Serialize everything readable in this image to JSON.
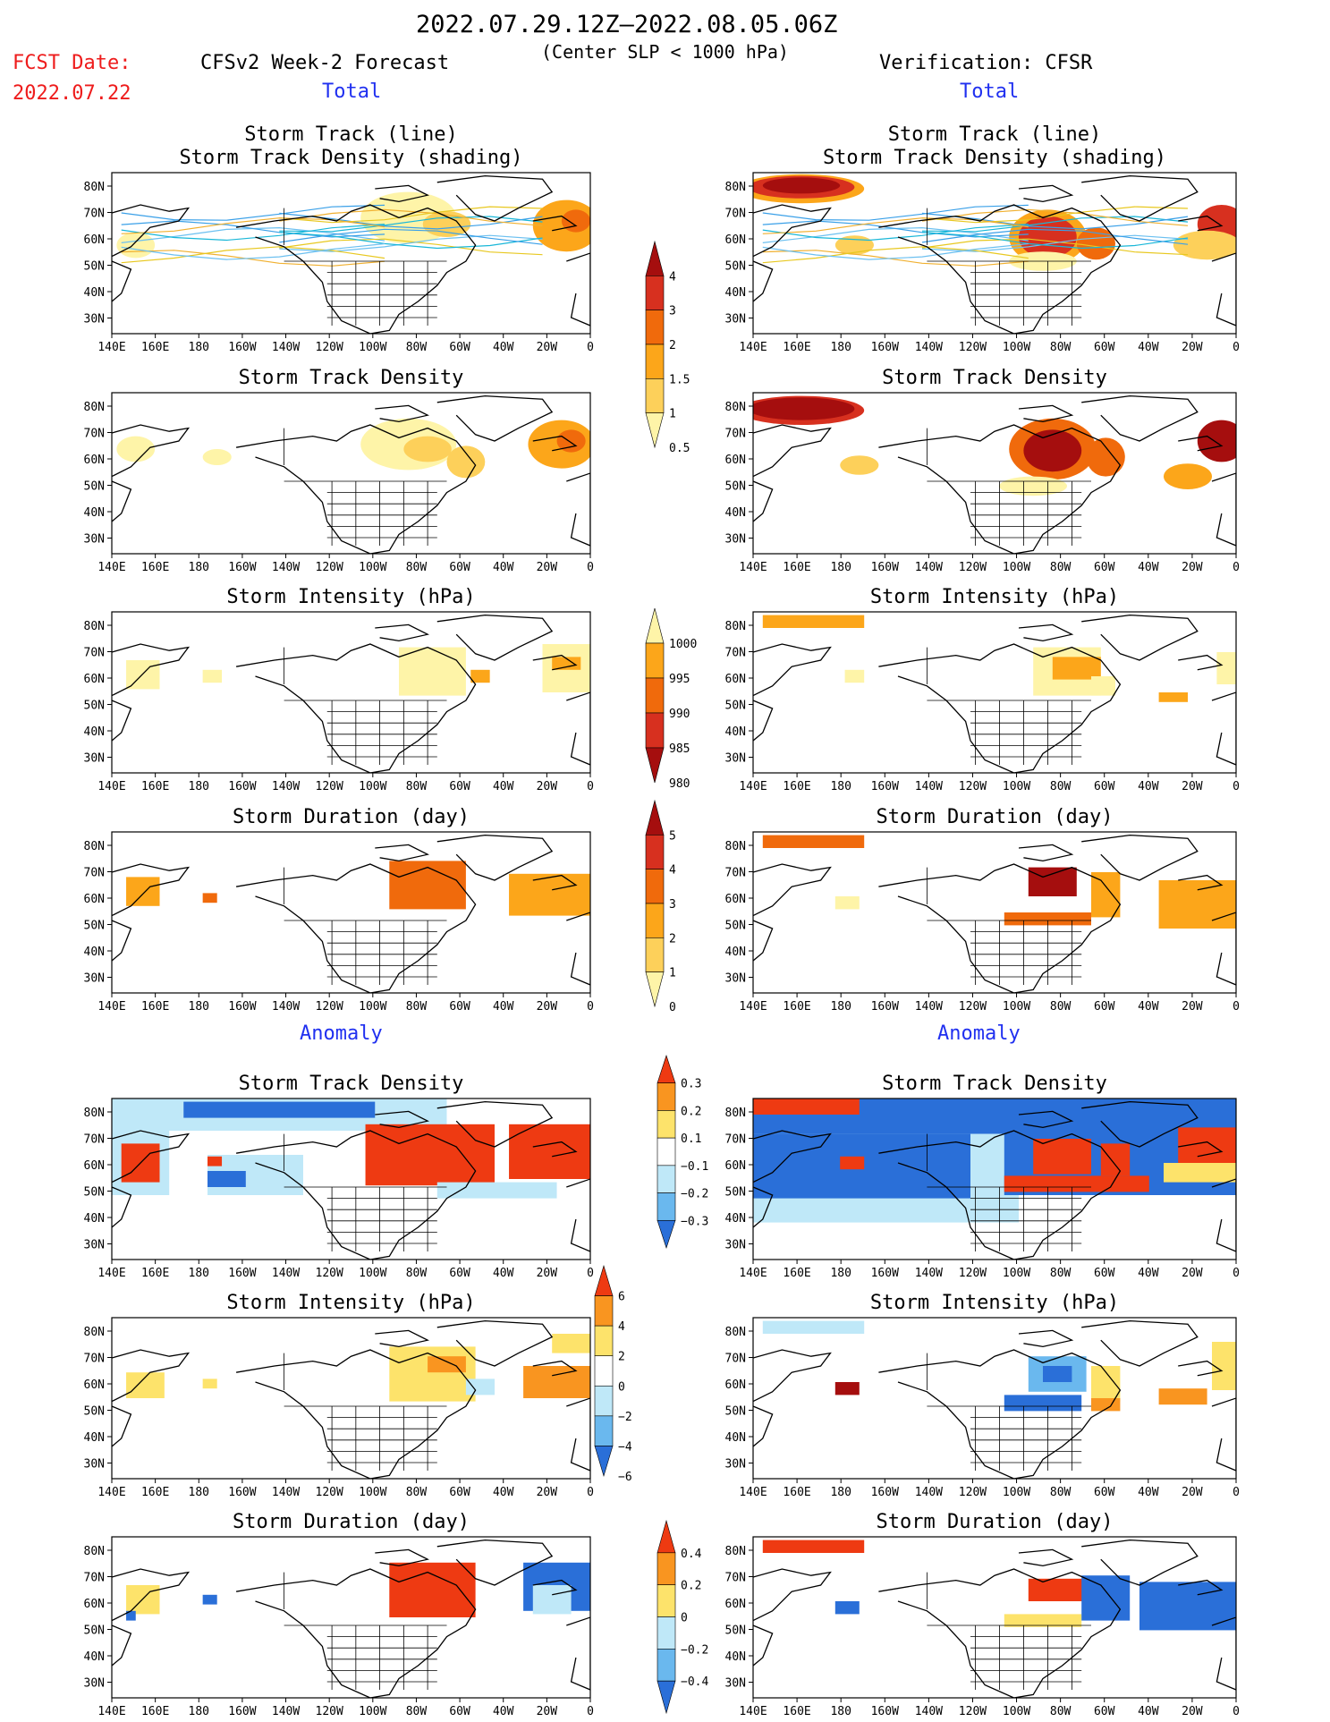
{
  "header": {
    "date_range": "2022.07.29.12Z–2022.08.05.06Z",
    "threshold": "(Center SLP < 1000 hPa)",
    "fcst_date_label": "FCST Date:",
    "fcst_date_value": "2022.07.22",
    "left_title": "CFSv2 Week-2 Forecast",
    "right_title": "Verification: CFSR",
    "total_label": "Total",
    "anomaly_label": "Anomaly"
  },
  "colors": {
    "red": "#ee1c1c",
    "blue": "#2030f0"
  },
  "chart_data": {
    "type": "heatmap",
    "x_ticks": [
      "140E",
      "160E",
      "180",
      "160W",
      "140W",
      "120W",
      "100W",
      "80W",
      "60W",
      "40W",
      "20W",
      "0"
    ],
    "y_ticks": [
      "80N",
      "70N",
      "60N",
      "50N",
      "40N",
      "30N"
    ],
    "colorbars": [
      {
        "id": "density_total",
        "title_for": "Storm Track Density",
        "labels": [
          "4",
          "3",
          "2",
          "1.5",
          "1",
          "0.5"
        ],
        "colors": [
          "#a50e0e",
          "#d7301f",
          "#f06a0c",
          "#fca61a",
          "#fdd05a",
          "#fef4a8"
        ]
      },
      {
        "id": "intensity_total",
        "title_for": "Storm Intensity (hPa)",
        "labels": [
          "1000",
          "995",
          "990",
          "985",
          "980"
        ],
        "colors": [
          "#fef4a8",
          "#fca61a",
          "#f06a0c",
          "#d7301f",
          "#a50e0e"
        ]
      },
      {
        "id": "duration_total",
        "title_for": "Storm Duration (day)",
        "labels": [
          "5",
          "4",
          "3",
          "2",
          "1",
          "0"
        ],
        "colors": [
          "#a50e0e",
          "#d7301f",
          "#f06a0c",
          "#fca61a",
          "#fdd05a",
          "#fef4a8"
        ]
      },
      {
        "id": "density_anom",
        "title_for": "Storm Track Density",
        "labels": [
          "0.3",
          "0.2",
          "0.1",
          "−0.1",
          "−0.2",
          "−0.3"
        ],
        "colors": [
          "#ee3a12",
          "#f99520",
          "#fde36b",
          "#ffffff",
          "#bfe8f8",
          "#6ab8ee",
          "#2a6fd8"
        ]
      },
      {
        "id": "intensity_anom",
        "title_for": "Storm Intensity (hPa)",
        "labels": [
          "6",
          "4",
          "2",
          "0",
          "−2",
          "−4",
          "−6"
        ],
        "colors": [
          "#ee3a12",
          "#f99520",
          "#fde36b",
          "#ffffff",
          "#bfe8f8",
          "#6ab8ee",
          "#2a6fd8"
        ]
      },
      {
        "id": "duration_anom",
        "title_for": "Storm Duration (day)",
        "labels": [
          "0.4",
          "0.2",
          "0",
          "−0.2",
          "−0.4"
        ],
        "colors": [
          "#ee3a12",
          "#f99520",
          "#fde36b",
          "#bfe8f8",
          "#6ab8ee",
          "#2a6fd8"
        ]
      }
    ],
    "panels": [
      {
        "id": "fc-track",
        "column": "forecast",
        "title": [
          "Storm Track (line)",
          "Storm Track Density (shading)"
        ],
        "tracks": true,
        "blobs": [
          [
            0.62,
            0.28,
            0.1,
            0.16,
            "#fef4a8"
          ],
          [
            0.7,
            0.32,
            0.05,
            0.08,
            "#fdd05a"
          ],
          [
            0.95,
            0.33,
            0.07,
            0.16,
            "#fca61a"
          ],
          [
            0.97,
            0.3,
            0.03,
            0.07,
            "#f06a0c"
          ],
          [
            0.05,
            0.45,
            0.04,
            0.08,
            "#fef4a8"
          ]
        ]
      },
      {
        "id": "vf-track",
        "column": "verification",
        "title": [
          "Storm Track (line)",
          "Storm Track Density (shading)"
        ],
        "tracks": true,
        "blobs": [
          [
            0.1,
            0.1,
            0.13,
            0.09,
            "#fca61a"
          ],
          [
            0.1,
            0.09,
            0.11,
            0.07,
            "#d7301f"
          ],
          [
            0.1,
            0.08,
            0.08,
            0.05,
            "#a50e0e"
          ],
          [
            0.61,
            0.4,
            0.08,
            0.17,
            "#fca61a"
          ],
          [
            0.61,
            0.4,
            0.06,
            0.13,
            "#d7301f"
          ],
          [
            0.71,
            0.44,
            0.04,
            0.1,
            "#f06a0c"
          ],
          [
            0.97,
            0.32,
            0.05,
            0.12,
            "#d7301f"
          ],
          [
            0.94,
            0.45,
            0.07,
            0.09,
            "#fdd05a"
          ],
          [
            0.21,
            0.45,
            0.04,
            0.06,
            "#fdd05a"
          ],
          [
            0.6,
            0.55,
            0.07,
            0.06,
            "#fef4a8"
          ]
        ]
      },
      {
        "id": "fc-density",
        "column": "forecast",
        "title": [
          "Storm Track Density"
        ],
        "blobs": [
          [
            0.62,
            0.32,
            0.1,
            0.16,
            "#fef4a8"
          ],
          [
            0.66,
            0.35,
            0.05,
            0.08,
            "#fdd05a"
          ],
          [
            0.94,
            0.32,
            0.07,
            0.15,
            "#fca61a"
          ],
          [
            0.96,
            0.3,
            0.03,
            0.07,
            "#f06a0c"
          ],
          [
            0.05,
            0.35,
            0.04,
            0.08,
            "#fef4a8"
          ],
          [
            0.22,
            0.4,
            0.03,
            0.05,
            "#fef4a8"
          ],
          [
            0.74,
            0.43,
            0.04,
            0.1,
            "#fdd05a"
          ]
        ]
      },
      {
        "id": "vf-density",
        "column": "verification",
        "title": [
          "Storm Track Density"
        ],
        "blobs": [
          [
            0.1,
            0.11,
            0.13,
            0.09,
            "#d7301f"
          ],
          [
            0.1,
            0.1,
            0.11,
            0.07,
            "#a50e0e"
          ],
          [
            0.62,
            0.35,
            0.09,
            0.19,
            "#f06a0c"
          ],
          [
            0.62,
            0.36,
            0.06,
            0.13,
            "#a50e0e"
          ],
          [
            0.73,
            0.4,
            0.04,
            0.12,
            "#f06a0c"
          ],
          [
            0.97,
            0.3,
            0.05,
            0.13,
            "#a50e0e"
          ],
          [
            0.9,
            0.52,
            0.05,
            0.08,
            "#fca61a"
          ],
          [
            0.22,
            0.45,
            0.04,
            0.06,
            "#fdd05a"
          ],
          [
            0.58,
            0.58,
            0.07,
            0.06,
            "#fef4a8"
          ]
        ]
      },
      {
        "id": "fc-intensity",
        "column": "forecast",
        "title": [
          "Storm Intensity (hPa)"
        ],
        "cells": [
          [
            0.6,
            0.22,
            0.14,
            0.3,
            "#fef4a8"
          ],
          [
            0.9,
            0.2,
            0.1,
            0.3,
            "#fef4a8"
          ],
          [
            0.92,
            0.28,
            0.06,
            0.08,
            "#fca61a"
          ],
          [
            0.03,
            0.3,
            0.07,
            0.18,
            "#fef4a8"
          ],
          [
            0.19,
            0.36,
            0.04,
            0.08,
            "#fef4a8"
          ],
          [
            0.75,
            0.36,
            0.04,
            0.08,
            "#fca61a"
          ]
        ]
      },
      {
        "id": "vf-intensity",
        "column": "verification",
        "title": [
          "Storm Intensity (hPa)"
        ],
        "cells": [
          [
            0.02,
            0.02,
            0.21,
            0.08,
            "#fca61a"
          ],
          [
            0.58,
            0.22,
            0.14,
            0.3,
            "#fef4a8"
          ],
          [
            0.62,
            0.28,
            0.1,
            0.14,
            "#fca61a"
          ],
          [
            0.7,
            0.4,
            0.05,
            0.12,
            "#fef4a8"
          ],
          [
            0.84,
            0.5,
            0.06,
            0.06,
            "#fca61a"
          ],
          [
            0.96,
            0.25,
            0.04,
            0.2,
            "#fef4a8"
          ],
          [
            0.19,
            0.36,
            0.04,
            0.08,
            "#fef4a8"
          ]
        ]
      },
      {
        "id": "fc-duration",
        "column": "forecast",
        "title": [
          "Storm Duration (day)"
        ],
        "cells": [
          [
            0.58,
            0.18,
            0.16,
            0.3,
            "#f06a0c"
          ],
          [
            0.83,
            0.26,
            0.17,
            0.26,
            "#fca61a"
          ],
          [
            0.03,
            0.28,
            0.07,
            0.18,
            "#fca61a"
          ],
          [
            0.19,
            0.38,
            0.03,
            0.06,
            "#f06a0c"
          ]
        ]
      },
      {
        "id": "vf-duration",
        "column": "verification",
        "title": [
          "Storm Duration (day)"
        ],
        "cells": [
          [
            0.02,
            0.02,
            0.21,
            0.08,
            "#f06a0c"
          ],
          [
            0.57,
            0.22,
            0.1,
            0.18,
            "#a50e0e"
          ],
          [
            0.52,
            0.5,
            0.18,
            0.08,
            "#f06a0c"
          ],
          [
            0.7,
            0.25,
            0.06,
            0.28,
            "#fca61a"
          ],
          [
            0.84,
            0.3,
            0.16,
            0.3,
            "#fca61a"
          ],
          [
            0.17,
            0.4,
            0.05,
            0.08,
            "#fef4a8"
          ]
        ]
      },
      {
        "id": "fc-density-anom",
        "column": "forecast",
        "title": [
          "Storm Track Density"
        ],
        "cells": [
          [
            0.0,
            0.0,
            0.7,
            0.2,
            "#bfe8f8"
          ],
          [
            0.15,
            0.02,
            0.4,
            0.1,
            "#2a6fd8"
          ],
          [
            0.0,
            0.2,
            0.12,
            0.4,
            "#bfe8f8"
          ],
          [
            0.02,
            0.28,
            0.08,
            0.24,
            "#ee3a12"
          ],
          [
            0.2,
            0.35,
            0.2,
            0.25,
            "#bfe8f8"
          ],
          [
            0.2,
            0.45,
            0.08,
            0.1,
            "#2a6fd8"
          ],
          [
            0.53,
            0.16,
            0.27,
            0.38,
            "#ee3a12"
          ],
          [
            0.83,
            0.16,
            0.17,
            0.34,
            "#ee3a12"
          ],
          [
            0.68,
            0.52,
            0.25,
            0.1,
            "#bfe8f8"
          ],
          [
            0.2,
            0.36,
            0.03,
            0.06,
            "#ee3a12"
          ]
        ]
      },
      {
        "id": "vf-density-anom",
        "column": "verification",
        "title": [
          "Storm Track Density"
        ],
        "cells": [
          [
            0.0,
            0.0,
            1.0,
            0.22,
            "#2a6fd8"
          ],
          [
            0.0,
            0.0,
            0.22,
            0.1,
            "#ee3a12"
          ],
          [
            0.0,
            0.22,
            0.55,
            0.55,
            "#bfe8f8"
          ],
          [
            0.0,
            0.22,
            0.45,
            0.4,
            "#2a6fd8"
          ],
          [
            0.52,
            0.2,
            0.48,
            0.4,
            "#2a6fd8"
          ],
          [
            0.58,
            0.25,
            0.12,
            0.22,
            "#ee3a12"
          ],
          [
            0.72,
            0.28,
            0.06,
            0.2,
            "#ee3a12"
          ],
          [
            0.88,
            0.18,
            0.12,
            0.22,
            "#ee3a12"
          ],
          [
            0.52,
            0.48,
            0.3,
            0.1,
            "#ee3a12"
          ],
          [
            0.18,
            0.36,
            0.05,
            0.08,
            "#ee3a12"
          ],
          [
            0.85,
            0.4,
            0.15,
            0.12,
            "#fde36b"
          ]
        ]
      },
      {
        "id": "fc-intensity-anom",
        "column": "forecast",
        "title": [
          "Storm Intensity (hPa)"
        ],
        "cells": [
          [
            0.58,
            0.18,
            0.18,
            0.34,
            "#fde36b"
          ],
          [
            0.66,
            0.24,
            0.08,
            0.1,
            "#f99520"
          ],
          [
            0.74,
            0.38,
            0.06,
            0.1,
            "#bfe8f8"
          ],
          [
            0.86,
            0.3,
            0.14,
            0.2,
            "#f99520"
          ],
          [
            0.92,
            0.1,
            0.08,
            0.12,
            "#fde36b"
          ],
          [
            0.03,
            0.34,
            0.08,
            0.16,
            "#fde36b"
          ],
          [
            0.19,
            0.38,
            0.03,
            0.06,
            "#fde36b"
          ]
        ]
      },
      {
        "id": "vf-intensity-anom",
        "column": "verification",
        "title": [
          "Storm Intensity (hPa)"
        ],
        "cells": [
          [
            0.02,
            0.02,
            0.21,
            0.08,
            "#bfe8f8"
          ],
          [
            0.57,
            0.24,
            0.12,
            0.22,
            "#6ab8ee"
          ],
          [
            0.6,
            0.3,
            0.06,
            0.1,
            "#2a6fd8"
          ],
          [
            0.52,
            0.48,
            0.16,
            0.1,
            "#2a6fd8"
          ],
          [
            0.7,
            0.3,
            0.06,
            0.22,
            "#fde36b"
          ],
          [
            0.7,
            0.5,
            0.06,
            0.08,
            "#f99520"
          ],
          [
            0.84,
            0.44,
            0.1,
            0.1,
            "#f99520"
          ],
          [
            0.95,
            0.15,
            0.05,
            0.3,
            "#fde36b"
          ],
          [
            0.17,
            0.4,
            0.05,
            0.08,
            "#a50e0e"
          ]
        ]
      },
      {
        "id": "fc-duration-anom",
        "column": "forecast",
        "title": [
          "Storm Duration (day)"
        ],
        "cells": [
          [
            0.58,
            0.16,
            0.18,
            0.34,
            "#ee3a12"
          ],
          [
            0.86,
            0.16,
            0.14,
            0.3,
            "#2a6fd8"
          ],
          [
            0.88,
            0.3,
            0.08,
            0.18,
            "#bfe8f8"
          ],
          [
            0.03,
            0.3,
            0.07,
            0.18,
            "#fde36b"
          ],
          [
            0.19,
            0.36,
            0.03,
            0.06,
            "#2a6fd8"
          ],
          [
            0.03,
            0.46,
            0.02,
            0.06,
            "#2a6fd8"
          ]
        ]
      },
      {
        "id": "vf-duration-anom",
        "column": "verification",
        "title": [
          "Storm Duration (day)"
        ],
        "cells": [
          [
            0.02,
            0.02,
            0.21,
            0.08,
            "#ee3a12"
          ],
          [
            0.57,
            0.26,
            0.12,
            0.14,
            "#ee3a12"
          ],
          [
            0.52,
            0.48,
            0.16,
            0.08,
            "#fde36b"
          ],
          [
            0.68,
            0.24,
            0.1,
            0.28,
            "#2a6fd8"
          ],
          [
            0.8,
            0.28,
            0.2,
            0.3,
            "#2a6fd8"
          ],
          [
            0.17,
            0.4,
            0.05,
            0.08,
            "#2a6fd8"
          ]
        ]
      }
    ]
  }
}
